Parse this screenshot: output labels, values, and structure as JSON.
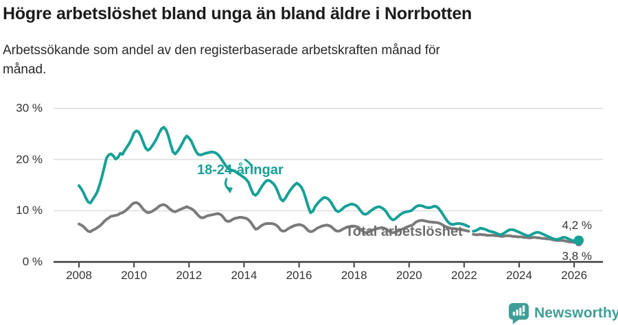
{
  "header": {
    "title": "Högre arbetslöshet bland unga än bland äldre i Norrbotten",
    "subtitle_line1": "Arbetssökande som andel av den registerbaserade arbetskraften månad för",
    "subtitle_line2": "månad."
  },
  "colors": {
    "teal": "#16a096",
    "gray_line": "#7a7a7a",
    "gray_label": "#6e6e6e",
    "axis_text": "#333333",
    "grid": "#dcdcdc",
    "baseline": "#3a3a3a",
    "value_label": "#333333",
    "brand_teal": "#3f9e97",
    "title": "#1b1b1b",
    "subtitle": "#282828"
  },
  "annotations": {
    "series_label_youth": "18-24-åringar",
    "series_label_total": "Total arbetslöshet",
    "end_label_youth": "4,2 %",
    "end_label_total": "3,8 %"
  },
  "footer": {
    "brand": "Newsworthy"
  },
  "chart_data": {
    "type": "line",
    "unit": "percent",
    "frequency": "monthly",
    "x_start": "2008-01",
    "x_end": "2026-03",
    "data_break": "2022-04",
    "ylim": [
      0,
      30
    ],
    "grid": "horizontal",
    "legend_position": "inline-labels",
    "y_ticks": [
      {
        "value": 0,
        "label": "0 %"
      },
      {
        "value": 10,
        "label": "10 %"
      },
      {
        "value": 20,
        "label": "20 %"
      },
      {
        "value": 30,
        "label": "30 %"
      }
    ],
    "x_ticks": [
      {
        "year": 2008,
        "label": "2008"
      },
      {
        "year": 2010,
        "label": "2010"
      },
      {
        "year": 2012,
        "label": "2012"
      },
      {
        "year": 2014,
        "label": "2014"
      },
      {
        "year": 2016,
        "label": "2016"
      },
      {
        "year": 2018,
        "label": "2018"
      },
      {
        "year": 2020,
        "label": "2020"
      },
      {
        "year": 2022,
        "label": "2022"
      },
      {
        "year": 2024,
        "label": "2024"
      },
      {
        "year": 2026,
        "label": "2026"
      }
    ],
    "series": [
      {
        "name": "18-24-åringar",
        "color": "#16a096",
        "end_value": 4.2,
        "end_label": "4,2 %",
        "values": [
          14.9,
          14.3,
          13.5,
          12.5,
          11.7,
          11.5,
          12.2,
          12.9,
          13.7,
          15.0,
          16.6,
          18.4,
          20.3,
          20.9,
          21.1,
          20.7,
          20.1,
          20.4,
          21.2,
          21.0,
          21.8,
          22.5,
          23.2,
          24.1,
          25.2,
          25.6,
          25.4,
          24.6,
          23.4,
          22.3,
          21.8,
          22.1,
          22.7,
          23.4,
          24.2,
          25.2,
          26.0,
          26.3,
          25.8,
          24.6,
          22.9,
          21.5,
          21.1,
          21.6,
          22.3,
          23.1,
          24.0,
          24.6,
          24.2,
          23.6,
          22.6,
          21.6,
          21.0,
          20.9,
          21.0,
          21.2,
          21.3,
          21.4,
          21.5,
          21.4,
          21.2,
          20.8,
          20.2,
          19.5,
          18.8,
          18.3,
          18.0,
          17.9,
          17.7,
          17.4,
          17.1,
          16.8,
          16.5,
          16.1,
          15.5,
          14.3,
          13.3,
          13.0,
          13.4,
          14.2,
          14.9,
          15.5,
          15.9,
          15.9,
          15.6,
          15.2,
          14.5,
          13.4,
          12.3,
          11.9,
          12.4,
          13.2,
          13.9,
          14.5,
          15.0,
          15.4,
          15.1,
          14.6,
          13.7,
          12.3,
          10.8,
          9.6,
          9.9,
          10.8,
          11.4,
          11.9,
          12.3,
          12.6,
          12.5,
          12.2,
          11.6,
          10.8,
          10.1,
          9.8,
          10.0,
          10.4,
          10.8,
          11.0,
          11.2,
          11.3,
          11.2,
          11.0,
          10.5,
          9.9,
          9.4,
          9.3,
          9.5,
          9.9,
          10.2,
          10.5,
          10.7,
          10.8,
          10.6,
          10.3,
          9.8,
          9.1,
          8.5,
          8.2,
          8.4,
          8.8,
          9.2,
          9.5,
          9.7,
          9.8,
          9.9,
          10.0,
          10.4,
          10.8,
          11.0,
          11.0,
          10.9,
          10.7,
          10.6,
          10.6,
          10.7,
          10.9,
          10.8,
          10.4,
          9.8,
          9.1,
          8.4,
          7.8,
          7.4,
          7.3,
          7.4,
          7.5,
          7.5,
          7.4,
          7.3,
          7.1,
          6.9,
          null,
          6.0,
          6.1,
          6.3,
          6.6,
          6.5,
          6.4,
          6.2,
          6.0,
          5.9,
          5.8,
          5.6,
          5.4,
          5.3,
          5.5,
          5.8,
          6.1,
          6.3,
          6.3,
          6.2,
          6.0,
          5.8,
          5.6,
          5.4,
          5.2,
          5.1,
          5.2,
          5.5,
          5.7,
          5.8,
          5.7,
          5.5,
          5.3,
          5.1,
          4.9,
          4.7,
          4.5,
          4.4,
          4.4,
          4.6,
          4.8,
          4.8,
          4.6,
          4.4,
          4.2,
          4.1,
          4.1,
          4.2
        ]
      },
      {
        "name": "Total arbetslöshet",
        "color": "#7a7a7a",
        "end_value": 3.8,
        "end_label": "3,8 %",
        "values": [
          7.4,
          7.2,
          6.9,
          6.4,
          6.0,
          5.9,
          6.2,
          6.4,
          6.7,
          7.0,
          7.4,
          7.9,
          8.3,
          8.6,
          8.9,
          9.0,
          9.1,
          9.2,
          9.5,
          9.6,
          9.9,
          10.3,
          10.7,
          11.2,
          11.5,
          11.6,
          11.4,
          10.9,
          10.3,
          9.9,
          9.6,
          9.7,
          9.9,
          10.2,
          10.5,
          10.9,
          11.1,
          11.2,
          11.0,
          10.6,
          10.2,
          9.9,
          9.8,
          10.0,
          10.2,
          10.4,
          10.6,
          10.8,
          10.6,
          10.4,
          10.1,
          9.6,
          9.1,
          8.7,
          8.6,
          8.8,
          9.0,
          9.1,
          9.2,
          9.3,
          9.4,
          9.4,
          9.2,
          8.7,
          8.1,
          7.9,
          8.0,
          8.3,
          8.5,
          8.6,
          8.7,
          8.7,
          8.6,
          8.5,
          8.2,
          7.7,
          7.0,
          6.4,
          6.5,
          6.9,
          7.2,
          7.4,
          7.5,
          7.5,
          7.5,
          7.4,
          7.2,
          6.8,
          6.2,
          6.0,
          6.1,
          6.4,
          6.7,
          6.9,
          7.1,
          7.2,
          7.3,
          7.2,
          7.0,
          6.6,
          6.1,
          5.9,
          6.0,
          6.3,
          6.6,
          6.8,
          7.0,
          7.1,
          7.2,
          7.1,
          6.9,
          6.5,
          6.1,
          6.0,
          6.1,
          6.4,
          6.6,
          6.8,
          6.9,
          7.0,
          7.0,
          6.9,
          6.7,
          6.3,
          5.9,
          5.7,
          5.8,
          6.0,
          6.2,
          6.4,
          6.5,
          6.6,
          6.7,
          6.6,
          6.4,
          6.1,
          5.8,
          5.7,
          5.8,
          6.0,
          6.2,
          6.4,
          6.6,
          6.8,
          7.0,
          7.1,
          7.4,
          7.8,
          8.0,
          8.1,
          8.1,
          8.0,
          7.9,
          7.8,
          7.8,
          7.7,
          7.7,
          7.6,
          7.4,
          7.1,
          6.9,
          6.7,
          6.6,
          6.5,
          6.5,
          6.4,
          6.4,
          6.3,
          6.2,
          6.1,
          6.0,
          null,
          5.4,
          5.3,
          5.3,
          5.4,
          5.3,
          5.3,
          5.2,
          5.2,
          5.2,
          5.2,
          5.1,
          5.1,
          5.0,
          5.0,
          5.1,
          5.1,
          5.1,
          5.0,
          5.0,
          4.9,
          4.9,
          4.9,
          4.8,
          4.8,
          4.7,
          4.7,
          4.8,
          4.8,
          4.7,
          4.7,
          4.6,
          4.6,
          4.5,
          4.5,
          4.4,
          4.3,
          4.2,
          4.2,
          4.2,
          4.2,
          4.1,
          4.0,
          3.9,
          3.9,
          3.8,
          3.8,
          3.8
        ]
      }
    ]
  }
}
